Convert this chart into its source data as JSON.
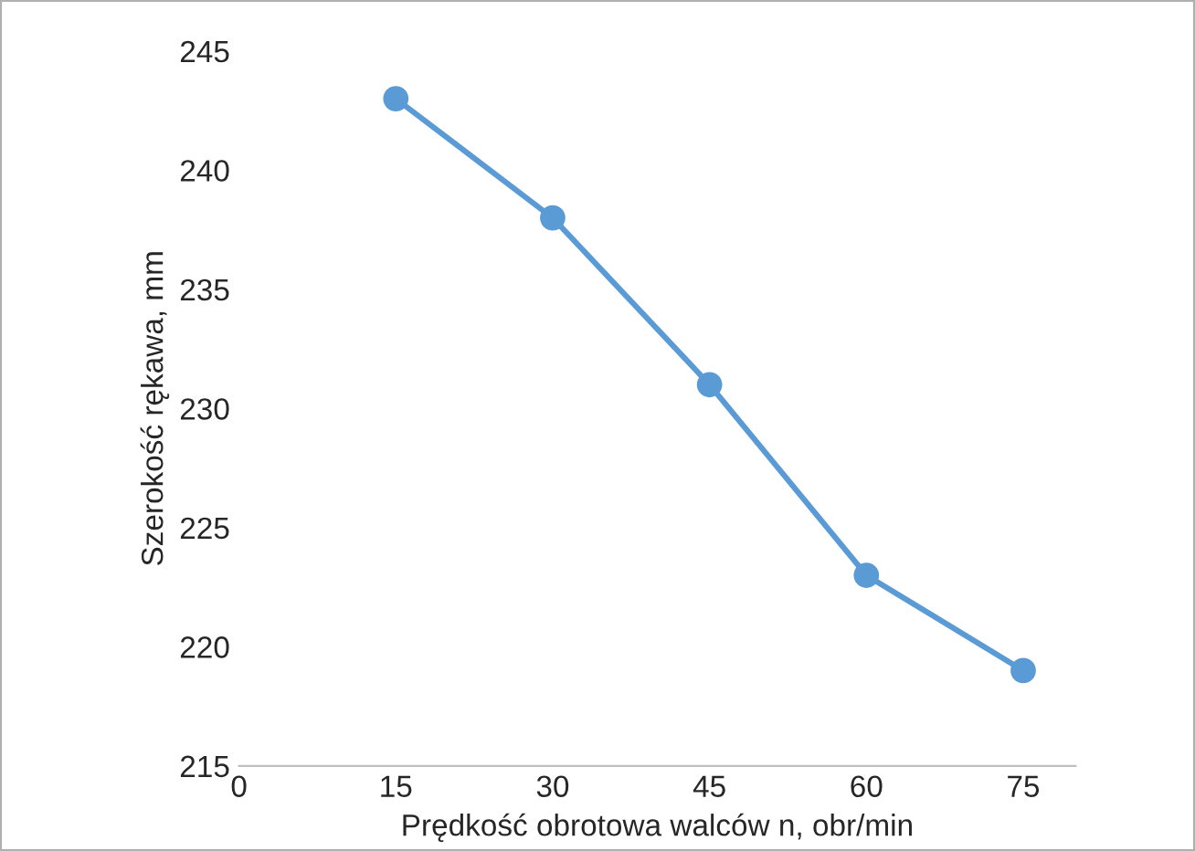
{
  "chart_data": {
    "type": "line",
    "xlabel": "Prędkość obrotowa walców n, obr/min",
    "ylabel": "Szerokość rękawa, mm",
    "x": [
      15,
      30,
      45,
      60,
      75
    ],
    "series": [
      {
        "color": "#5b9bd5",
        "values": [
          243,
          238,
          231,
          223,
          219
        ]
      }
    ],
    "xlim": [
      0,
      80
    ],
    "xticks": [
      0,
      15,
      30,
      45,
      60,
      75
    ],
    "ylim": [
      215,
      245
    ],
    "yticks": [
      215,
      220,
      225,
      230,
      235,
      240,
      245
    ],
    "marker": "circle",
    "line_style": "solid",
    "grid": false,
    "legend": false
  }
}
